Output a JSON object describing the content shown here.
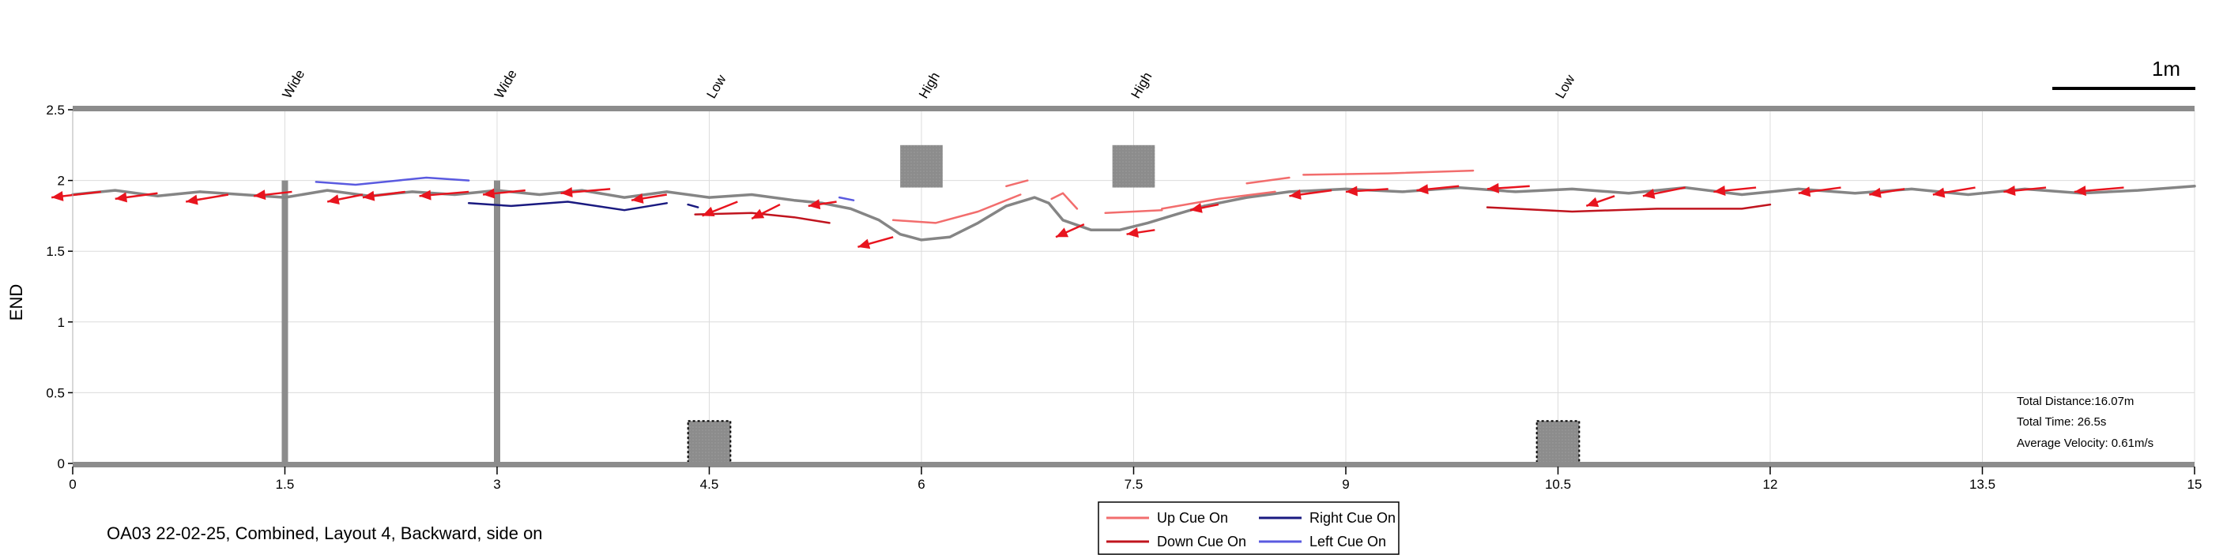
{
  "caption": "OA03 22-02-25, Combined, Layout 4, Backward, side on",
  "scale_bar_label": "1m",
  "stats": {
    "distance": "Total Distance:16.07m",
    "time": "Total Time: 26.5s",
    "velocity": "Average Velocity: 0.61m/s"
  },
  "legend": [
    {
      "label": "Up Cue On",
      "color": "#f26d6d"
    },
    {
      "label": "Right Cue On",
      "color": "#1a1a80"
    },
    {
      "label": "Down Cue On",
      "color": "#c0141e"
    },
    {
      "label": "Left Cue On",
      "color": "#5a5ae0"
    }
  ],
  "colors": {
    "path": "#858585",
    "arrow": "#e8141e",
    "obstacle": "#8c8c8c",
    "border": "#8c8c8c",
    "grid": "#dcdcdc"
  },
  "chart_data": {
    "type": "line",
    "xlabel": "",
    "ylabel": "END",
    "xlim": [
      0,
      15
    ],
    "ylim": [
      0,
      2.5
    ],
    "x_ticks": [
      "0",
      "1.5",
      "3",
      "4.5",
      "6",
      "7.5",
      "9",
      "10.5",
      "12",
      "13.5",
      "15"
    ],
    "y_ticks": [
      "0",
      "0.5",
      "1",
      "1.5",
      "2",
      "2.5"
    ],
    "x_tick_values": [
      0,
      1.5,
      3,
      4.5,
      6,
      7.5,
      9,
      10.5,
      12,
      13.5,
      15
    ],
    "y_tick_values": [
      0,
      0.5,
      1,
      1.5,
      2,
      2.5
    ],
    "grid": true,
    "zones": [
      {
        "x": 1.5,
        "label": "Wide"
      },
      {
        "x": 3,
        "label": "Wide"
      },
      {
        "x": 4.5,
        "label": "Low"
      },
      {
        "x": 6,
        "label": "High"
      },
      {
        "x": 7.5,
        "label": "High"
      },
      {
        "x": 10.5,
        "label": "Low"
      }
    ],
    "obstacles": [
      {
        "type": "pole",
        "x": 1.5,
        "y_from": 0,
        "y_to": 2.0
      },
      {
        "type": "pole",
        "x": 3.0,
        "y_from": 0,
        "y_to": 2.0
      },
      {
        "type": "low-block",
        "x_from": 4.35,
        "x_to": 4.65,
        "y_from": 0,
        "y_to": 0.3
      },
      {
        "type": "high-block",
        "x_from": 5.85,
        "x_to": 6.15,
        "y_from": 1.95,
        "y_to": 2.25
      },
      {
        "type": "high-block",
        "x_from": 7.35,
        "x_to": 7.65,
        "y_from": 1.95,
        "y_to": 2.25
      },
      {
        "type": "low-block",
        "x_from": 10.35,
        "x_to": 10.65,
        "y_from": 0,
        "y_to": 0.3
      }
    ],
    "series": [
      {
        "name": "Path",
        "style": "path",
        "x": [
          0,
          0.3,
          0.6,
          0.9,
          1.2,
          1.5,
          1.8,
          2.1,
          2.4,
          2.7,
          3.0,
          3.3,
          3.6,
          3.9,
          4.2,
          4.5,
          4.8,
          5.1,
          5.3,
          5.5,
          5.7,
          5.85,
          6.0,
          6.2,
          6.4,
          6.6,
          6.8,
          6.9,
          7.0,
          7.2,
          7.4,
          7.6,
          7.8,
          8.0,
          8.3,
          8.6,
          9.0,
          9.4,
          9.8,
          10.2,
          10.6,
          11.0,
          11.4,
          11.8,
          12.2,
          12.6,
          13.0,
          13.4,
          13.8,
          14.2,
          14.6,
          15.0
        ],
        "y": [
          1.9,
          1.93,
          1.89,
          1.92,
          1.9,
          1.88,
          1.93,
          1.89,
          1.92,
          1.9,
          1.93,
          1.9,
          1.93,
          1.88,
          1.92,
          1.88,
          1.9,
          1.86,
          1.84,
          1.8,
          1.72,
          1.62,
          1.58,
          1.6,
          1.7,
          1.82,
          1.88,
          1.84,
          1.72,
          1.65,
          1.65,
          1.7,
          1.76,
          1.82,
          1.88,
          1.92,
          1.94,
          1.92,
          1.95,
          1.92,
          1.94,
          1.91,
          1.95,
          1.9,
          1.94,
          1.91,
          1.94,
          1.9,
          1.94,
          1.91,
          1.93,
          1.96
        ]
      },
      {
        "name": "Up Cue On",
        "style": "up",
        "segments": [
          {
            "x": [
              5.8,
              6.1,
              6.4,
              6.7
            ],
            "y": [
              1.72,
              1.7,
              1.78,
              1.9
            ]
          },
          {
            "x": [
              6.6,
              6.75
            ],
            "y": [
              1.96,
              2.0
            ]
          },
          {
            "x": [
              6.92,
              7.0,
              7.1
            ],
            "y": [
              1.87,
              1.91,
              1.8
            ]
          },
          {
            "x": [
              7.3,
              7.7
            ],
            "y": [
              1.77,
              1.79
            ]
          },
          {
            "x": [
              7.7,
              8.1,
              8.5
            ],
            "y": [
              1.8,
              1.87,
              1.92
            ]
          },
          {
            "x": [
              8.3,
              8.6
            ],
            "y": [
              1.98,
              2.02
            ]
          },
          {
            "x": [
              8.7,
              9.3,
              9.9
            ],
            "y": [
              2.04,
              2.05,
              2.07
            ]
          }
        ]
      },
      {
        "name": "Right Cue On",
        "style": "right",
        "segments": [
          {
            "x": [
              2.8,
              3.1,
              3.5,
              3.9,
              4.2
            ],
            "y": [
              1.84,
              1.82,
              1.85,
              1.79,
              1.84
            ]
          },
          {
            "x": [
              4.35,
              4.42
            ],
            "y": [
              1.83,
              1.81
            ]
          }
        ]
      },
      {
        "name": "Down Cue On",
        "style": "down",
        "segments": [
          {
            "x": [
              4.4,
              4.8,
              5.1,
              5.35
            ],
            "y": [
              1.76,
              1.77,
              1.74,
              1.7
            ]
          },
          {
            "x": [
              10.0,
              10.6,
              11.2,
              11.8,
              12.0
            ],
            "y": [
              1.81,
              1.78,
              1.8,
              1.8,
              1.83
            ]
          }
        ]
      },
      {
        "name": "Left Cue On",
        "style": "left",
        "segments": [
          {
            "x": [
              1.72,
              2.0,
              2.3,
              2.5,
              2.8
            ],
            "y": [
              1.99,
              1.97,
              2.0,
              2.02,
              2.0
            ]
          },
          {
            "x": [
              5.42,
              5.52
            ],
            "y": [
              1.88,
              1.86
            ]
          }
        ]
      }
    ],
    "arrows": [
      {
        "x1": 0.2,
        "y1": 1.92,
        "x2": -0.15,
        "y2": 1.88
      },
      {
        "x1": 0.6,
        "y1": 1.91,
        "x2": 0.3,
        "y2": 1.87
      },
      {
        "x1": 1.1,
        "y1": 1.9,
        "x2": 0.8,
        "y2": 1.85
      },
      {
        "x1": 1.55,
        "y1": 1.92,
        "x2": 1.28,
        "y2": 1.89
      },
      {
        "x1": 2.05,
        "y1": 1.9,
        "x2": 1.8,
        "y2": 1.85
      },
      {
        "x1": 2.35,
        "y1": 1.92,
        "x2": 2.05,
        "y2": 1.88
      },
      {
        "x1": 2.8,
        "y1": 1.92,
        "x2": 2.45,
        "y2": 1.89
      },
      {
        "x1": 3.2,
        "y1": 1.93,
        "x2": 2.9,
        "y2": 1.9
      },
      {
        "x1": 3.8,
        "y1": 1.94,
        "x2": 3.45,
        "y2": 1.91
      },
      {
        "x1": 4.2,
        "y1": 1.9,
        "x2": 3.95,
        "y2": 1.86
      },
      {
        "x1": 4.7,
        "y1": 1.85,
        "x2": 4.45,
        "y2": 1.75
      },
      {
        "x1": 5.0,
        "y1": 1.83,
        "x2": 4.8,
        "y2": 1.73
      },
      {
        "x1": 5.4,
        "y1": 1.85,
        "x2": 5.2,
        "y2": 1.82
      },
      {
        "x1": 5.8,
        "y1": 1.6,
        "x2": 5.55,
        "y2": 1.53
      },
      {
        "x1": 7.15,
        "y1": 1.69,
        "x2": 6.95,
        "y2": 1.6
      },
      {
        "x1": 7.65,
        "y1": 1.65,
        "x2": 7.45,
        "y2": 1.62
      },
      {
        "x1": 8.1,
        "y1": 1.83,
        "x2": 7.9,
        "y2": 1.79
      },
      {
        "x1": 8.9,
        "y1": 1.93,
        "x2": 8.6,
        "y2": 1.89
      },
      {
        "x1": 9.3,
        "y1": 1.94,
        "x2": 9.0,
        "y2": 1.92
      },
      {
        "x1": 9.8,
        "y1": 1.96,
        "x2": 9.5,
        "y2": 1.93
      },
      {
        "x1": 10.3,
        "y1": 1.96,
        "x2": 10.0,
        "y2": 1.94
      },
      {
        "x1": 10.9,
        "y1": 1.89,
        "x2": 10.7,
        "y2": 1.82
      },
      {
        "x1": 11.4,
        "y1": 1.95,
        "x2": 11.1,
        "y2": 1.89
      },
      {
        "x1": 11.9,
        "y1": 1.95,
        "x2": 11.6,
        "y2": 1.92
      },
      {
        "x1": 12.5,
        "y1": 1.95,
        "x2": 12.2,
        "y2": 1.91
      },
      {
        "x1": 12.95,
        "y1": 1.94,
        "x2": 12.7,
        "y2": 1.9
      },
      {
        "x1": 13.45,
        "y1": 1.95,
        "x2": 13.15,
        "y2": 1.9
      },
      {
        "x1": 13.95,
        "y1": 1.95,
        "x2": 13.65,
        "y2": 1.92
      },
      {
        "x1": 14.5,
        "y1": 1.95,
        "x2": 14.15,
        "y2": 1.92
      }
    ]
  }
}
